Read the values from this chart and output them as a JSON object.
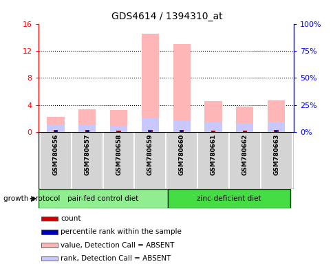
{
  "title": "GDS4614 / 1394310_at",
  "samples": [
    "GSM780656",
    "GSM780657",
    "GSM780658",
    "GSM780659",
    "GSM780660",
    "GSM780661",
    "GSM780662",
    "GSM780663"
  ],
  "group1_label": "pair-fed control diet",
  "group1_color": "#90ee90",
  "group1_indices": [
    0,
    1,
    2,
    3
  ],
  "group2_label": "zinc-deficient diet",
  "group2_color": "#44dd44",
  "group2_indices": [
    4,
    5,
    6,
    7
  ],
  "growth_protocol_label": "growth protocol",
  "value_absent": [
    2.2,
    3.4,
    3.3,
    14.5,
    13.0,
    4.6,
    3.8,
    4.7
  ],
  "rank_absent_pct": [
    6.5,
    6.5,
    5.0,
    12.5,
    10.0,
    9.0,
    7.5,
    9.5
  ],
  "count_vals": [
    0.3,
    0.3,
    0.18,
    0.3,
    0.3,
    0.25,
    0.22,
    0.28
  ],
  "rank_present_vals": [
    0.18,
    0.18,
    0.12,
    0.18,
    0.18,
    0.15,
    0.14,
    0.16
  ],
  "ylim_left": [
    0,
    16
  ],
  "ylim_right": [
    0,
    100
  ],
  "yticks_left": [
    0,
    4,
    8,
    12,
    16
  ],
  "yticks_right": [
    0,
    25,
    50,
    75,
    100
  ],
  "yticklabels_left": [
    "0",
    "4",
    "8",
    "12",
    "16"
  ],
  "yticklabels_right": [
    "0%",
    "25%",
    "50%",
    "75%",
    "100%"
  ],
  "color_count": "#cc0000",
  "color_rank_present": "#0000bb",
  "color_value_absent": "#ffb6b6",
  "color_rank_absent": "#c8c8ff",
  "bar_width": 0.55,
  "legend_items": [
    {
      "label": "count",
      "color": "#cc0000"
    },
    {
      "label": "percentile rank within the sample",
      "color": "#0000bb"
    },
    {
      "label": "value, Detection Call = ABSENT",
      "color": "#ffb6b6"
    },
    {
      "label": "rank, Detection Call = ABSENT",
      "color": "#c8c8ff"
    }
  ]
}
